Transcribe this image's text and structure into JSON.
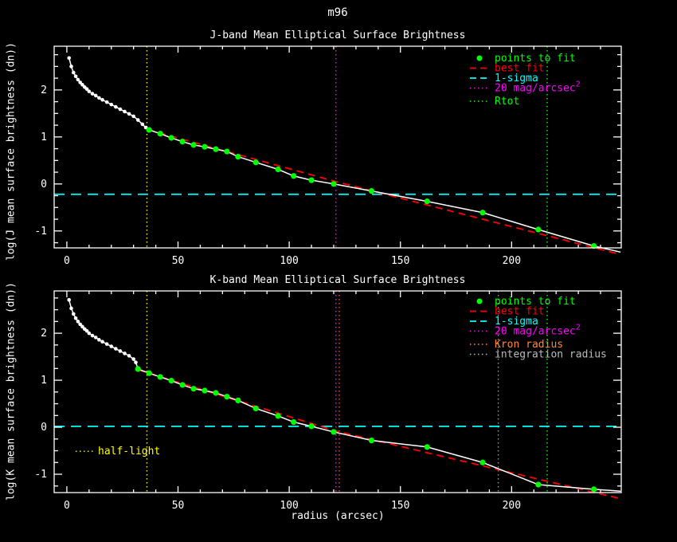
{
  "title": "m96",
  "xlabel": "radius (arcsec)",
  "chart_data": [
    {
      "id": "j-band",
      "type": "line",
      "title": "J-band Mean Elliptical Surface Brightness",
      "ylabel": "log(J mean surface brightness (dn))",
      "xlabel": "radius (arcsec)",
      "xlim": [
        -5.7,
        249.3
      ],
      "ylim": [
        -1.36,
        2.93
      ],
      "xticks": [
        0,
        50,
        100,
        150,
        200
      ],
      "yticks": [
        -1,
        0,
        1,
        2
      ],
      "x_minor_step": 10,
      "y_minor_step": 0.25,
      "grid": false,
      "legend_position": "top-right",
      "series": {
        "inner_profile": {
          "name": "measured profile (inner points)",
          "color": "#ffffff",
          "points": [
            [
              1,
              2.68
            ],
            [
              2,
              2.5
            ],
            [
              3,
              2.37
            ],
            [
              4,
              2.29
            ],
            [
              5,
              2.22
            ],
            [
              6,
              2.16
            ],
            [
              7,
              2.11
            ],
            [
              8,
              2.06
            ],
            [
              9,
              2.02
            ],
            [
              10,
              1.97
            ],
            [
              11.5,
              1.92
            ],
            [
              13,
              1.88
            ],
            [
              14.5,
              1.83
            ],
            [
              16,
              1.79
            ],
            [
              18,
              1.74
            ],
            [
              20,
              1.69
            ],
            [
              22,
              1.64
            ],
            [
              24,
              1.59
            ],
            [
              26,
              1.54
            ],
            [
              28,
              1.49
            ],
            [
              30,
              1.44
            ],
            [
              32,
              1.36
            ],
            [
              34,
              1.27
            ],
            [
              35.5,
              1.2
            ]
          ]
        },
        "points_to_fit": {
          "name": "points to fit",
          "color": "#00ff00",
          "points": [
            [
              37,
              1.15
            ],
            [
              42,
              1.07
            ],
            [
              47,
              0.98
            ],
            [
              52,
              0.9
            ],
            [
              57,
              0.83
            ],
            [
              62,
              0.79
            ],
            [
              67,
              0.74
            ],
            [
              72,
              0.69
            ],
            [
              77,
              0.58
            ],
            [
              85,
              0.46
            ],
            [
              95,
              0.31
            ],
            [
              102,
              0.17
            ],
            [
              110,
              0.08
            ],
            [
              120,
              0.0
            ],
            [
              137,
              -0.15
            ],
            [
              162,
              -0.37
            ],
            [
              187,
              -0.61
            ],
            [
              212,
              -0.97
            ],
            [
              237,
              -1.32
            ]
          ]
        },
        "profile_tail": [
          [
            249,
            -1.45
          ]
        ],
        "best_fit": {
          "name": "best fit",
          "color": "#ff0000",
          "points": [
            [
              36,
              1.16
            ],
            [
              121,
              0.05
            ],
            [
              249,
              -1.5
            ]
          ]
        },
        "one_sigma": {
          "name": "1-sigma",
          "color": "#00ffff",
          "value": -0.22
        }
      },
      "vlines": [
        {
          "name": "half-light",
          "x": 36,
          "color": "#ffff00"
        },
        {
          "name": "20 mag/arcsec2",
          "x": 121,
          "color": "#ff00ff"
        },
        {
          "name": "Rtot",
          "x": 216,
          "color": "#00ff00"
        }
      ],
      "legend": [
        {
          "label": "points to fit",
          "color": "#00ff00",
          "style": "dot"
        },
        {
          "label": "best fit",
          "color": "#ff0000",
          "style": "dash"
        },
        {
          "label": "1-sigma",
          "color": "#00ffff",
          "style": "dash"
        },
        {
          "label": "20 mag/arcsec",
          "sup": "2",
          "color": "#ff00ff",
          "style": "dots"
        },
        {
          "label": "Rtot",
          "color": "#00ff00",
          "style": "dots"
        }
      ]
    },
    {
      "id": "k-band",
      "type": "line",
      "title": "K-band Mean Elliptical Surface Brightness",
      "ylabel": "log(K mean surface brightness (dn))",
      "xlabel": "radius (arcsec)",
      "xlim": [
        -5.7,
        249.3
      ],
      "ylim": [
        -1.39,
        2.9
      ],
      "xticks": [
        0,
        50,
        100,
        150,
        200
      ],
      "yticks": [
        -1,
        0,
        1,
        2
      ],
      "x_minor_step": 10,
      "y_minor_step": 0.25,
      "grid": false,
      "legend_position": "top-right",
      "series": {
        "inner_profile": {
          "name": "measured profile (inner points)",
          "color": "#ffffff",
          "points": [
            [
              1,
              2.71
            ],
            [
              2,
              2.53
            ],
            [
              3,
              2.41
            ],
            [
              4,
              2.32
            ],
            [
              5,
              2.25
            ],
            [
              6,
              2.19
            ],
            [
              7,
              2.14
            ],
            [
              8,
              2.09
            ],
            [
              9,
              2.05
            ],
            [
              10,
              2.0
            ],
            [
              11.5,
              1.95
            ],
            [
              13,
              1.91
            ],
            [
              14.5,
              1.86
            ],
            [
              16,
              1.82
            ],
            [
              18,
              1.77
            ],
            [
              20,
              1.72
            ],
            [
              22,
              1.67
            ],
            [
              24,
              1.62
            ],
            [
              26,
              1.57
            ],
            [
              28,
              1.52
            ],
            [
              30,
              1.45
            ],
            [
              31,
              1.38
            ]
          ]
        },
        "points_to_fit": {
          "name": "points to fit",
          "color": "#00ff00",
          "points": [
            [
              32,
              1.24
            ],
            [
              37,
              1.15
            ],
            [
              42,
              1.07
            ],
            [
              47,
              0.99
            ],
            [
              52,
              0.9
            ],
            [
              57,
              0.82
            ],
            [
              62,
              0.78
            ],
            [
              67,
              0.73
            ],
            [
              72,
              0.65
            ],
            [
              77,
              0.57
            ],
            [
              85,
              0.4
            ],
            [
              95,
              0.24
            ],
            [
              102,
              0.11
            ],
            [
              110,
              0.02
            ],
            [
              120,
              -0.1
            ],
            [
              137,
              -0.28
            ],
            [
              162,
              -0.42
            ],
            [
              187,
              -0.75
            ],
            [
              212,
              -1.22
            ],
            [
              237,
              -1.32
            ]
          ]
        },
        "profile_tail": [
          [
            249,
            -1.36
          ]
        ],
        "best_fit": {
          "name": "best fit",
          "color": "#ff0000",
          "points": [
            [
              32,
              1.22
            ],
            [
              121,
              -0.08
            ],
            [
              249,
              -1.52
            ]
          ]
        },
        "one_sigma": {
          "name": "1-sigma",
          "color": "#00ffff",
          "value": 0.02
        }
      },
      "vlines": [
        {
          "name": "half-light",
          "x": 36,
          "color": "#ffff00"
        },
        {
          "name": "20 mag/arcsec2",
          "x": 121,
          "color": "#ff00ff"
        },
        {
          "name": "Kron radius",
          "x": 122.5,
          "color": "#ff4433"
        },
        {
          "name": "integration radius",
          "x": 194,
          "color": "#999999"
        },
        {
          "name": "Rtot",
          "x": 216,
          "color": "#00ff00"
        }
      ],
      "legend": [
        {
          "label": "points to fit",
          "color": "#00ff00",
          "style": "dot"
        },
        {
          "label": "best fit",
          "color": "#ff0000",
          "style": "dash"
        },
        {
          "label": "1-sigma",
          "color": "#00ffff",
          "style": "dash"
        },
        {
          "label": "20 mag/arcsec",
          "sup": "2",
          "color": "#ff00ff",
          "style": "dots"
        },
        {
          "label": "Kron radius",
          "color": "#ff8833",
          "style": "dots"
        },
        {
          "label": "integration radius",
          "color": "#bbbbbb",
          "style": "dots"
        }
      ],
      "annotation": {
        "text": "half-light",
        "color": "#ffff00",
        "x": 14,
        "y": -0.58
      }
    }
  ]
}
